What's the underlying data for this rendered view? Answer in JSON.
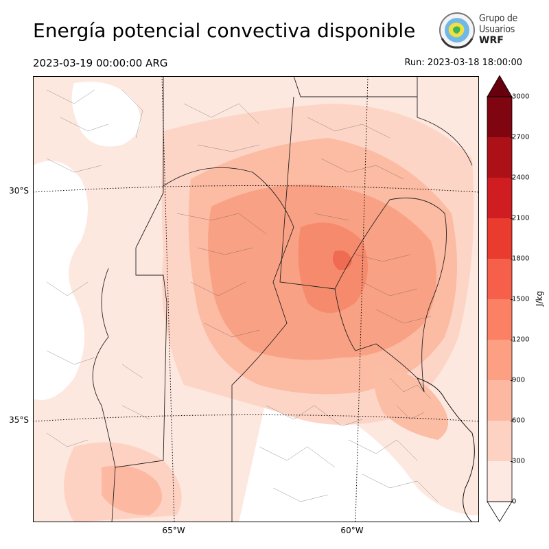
{
  "header": {
    "title": "Energía potencial convectiva disponible",
    "valid_time": "2023-03-19 00:00:00 ARG",
    "run_time": "Run: 2023-03-18 18:00:00"
  },
  "logo": {
    "line1": "Grupo de",
    "line2": "Usuarios",
    "line3": "WRF"
  },
  "axes": {
    "lat_labels": [
      "30°S",
      "35°S"
    ],
    "lon_labels": [
      "65°W",
      "60°W"
    ]
  },
  "colorbar": {
    "unit": "J/kg",
    "ticks": [
      "0",
      "300",
      "600",
      "900",
      "1200",
      "1500",
      "1800",
      "2100",
      "2400",
      "2700",
      "3000"
    ],
    "colors": [
      "#fee9e2",
      "#fdd2c3",
      "#fcb8a0",
      "#fc9f82",
      "#fb8064",
      "#f6604a",
      "#ea3b2f",
      "#cf1d21",
      "#ad1118",
      "#7f0611"
    ],
    "under_color": "#ffffff",
    "over_color": "#67000d"
  },
  "map_fill_colors": {
    "land": "#ffffff",
    "level_300": "#fde3d8",
    "level_600": "#fccdb9",
    "level_900": "#fbb39a",
    "level_1200": "#f99a7e",
    "level_1500": "#f6866a",
    "level_1800": "#ef6a52"
  }
}
